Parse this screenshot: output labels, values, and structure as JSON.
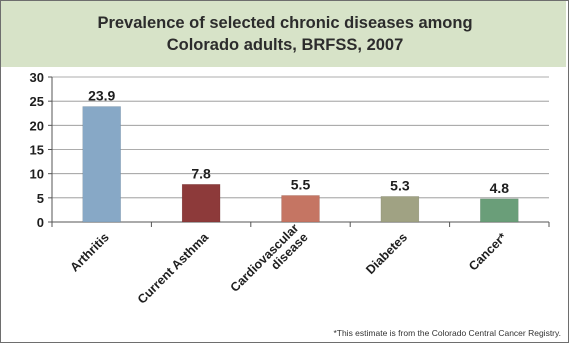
{
  "chart_data": {
    "type": "bar",
    "title": "Prevalence of selected chronic diseases among Colorado adults, BRFSS, 2007",
    "title_lines": [
      "Prevalence of selected chronic diseases among",
      "Colorado adults, BRFSS, 2007"
    ],
    "categories": [
      "Arthritis",
      "Current Asthma",
      "Cardiovascular disease",
      "Diabetes",
      "Cancer*"
    ],
    "category_lines": [
      [
        "Arthritis"
      ],
      [
        "Current Asthma"
      ],
      [
        "Cardiovascular",
        "disease"
      ],
      [
        "Diabetes"
      ],
      [
        "Cancer*"
      ]
    ],
    "values": [
      23.9,
      7.8,
      5.5,
      5.3,
      4.8
    ],
    "data_labels": [
      "23.9",
      "7.8",
      "5.5",
      "5.3",
      "4.8"
    ],
    "bar_colors": [
      "#87a8c6",
      "#8d3a3a",
      "#c57563",
      "#a0a283",
      "#6a9e79"
    ],
    "ylim": [
      0,
      30
    ],
    "yticks": [
      0,
      5,
      10,
      15,
      20,
      25,
      30
    ],
    "grid": true,
    "xlabel": "",
    "ylabel": ""
  },
  "footnote": "*This estimate is from the Colorado Central Cancer Registry.",
  "colors": {
    "header_background": "#d7e3c8",
    "frame_border": "#6e6e6e",
    "gridline": "#909090"
  }
}
